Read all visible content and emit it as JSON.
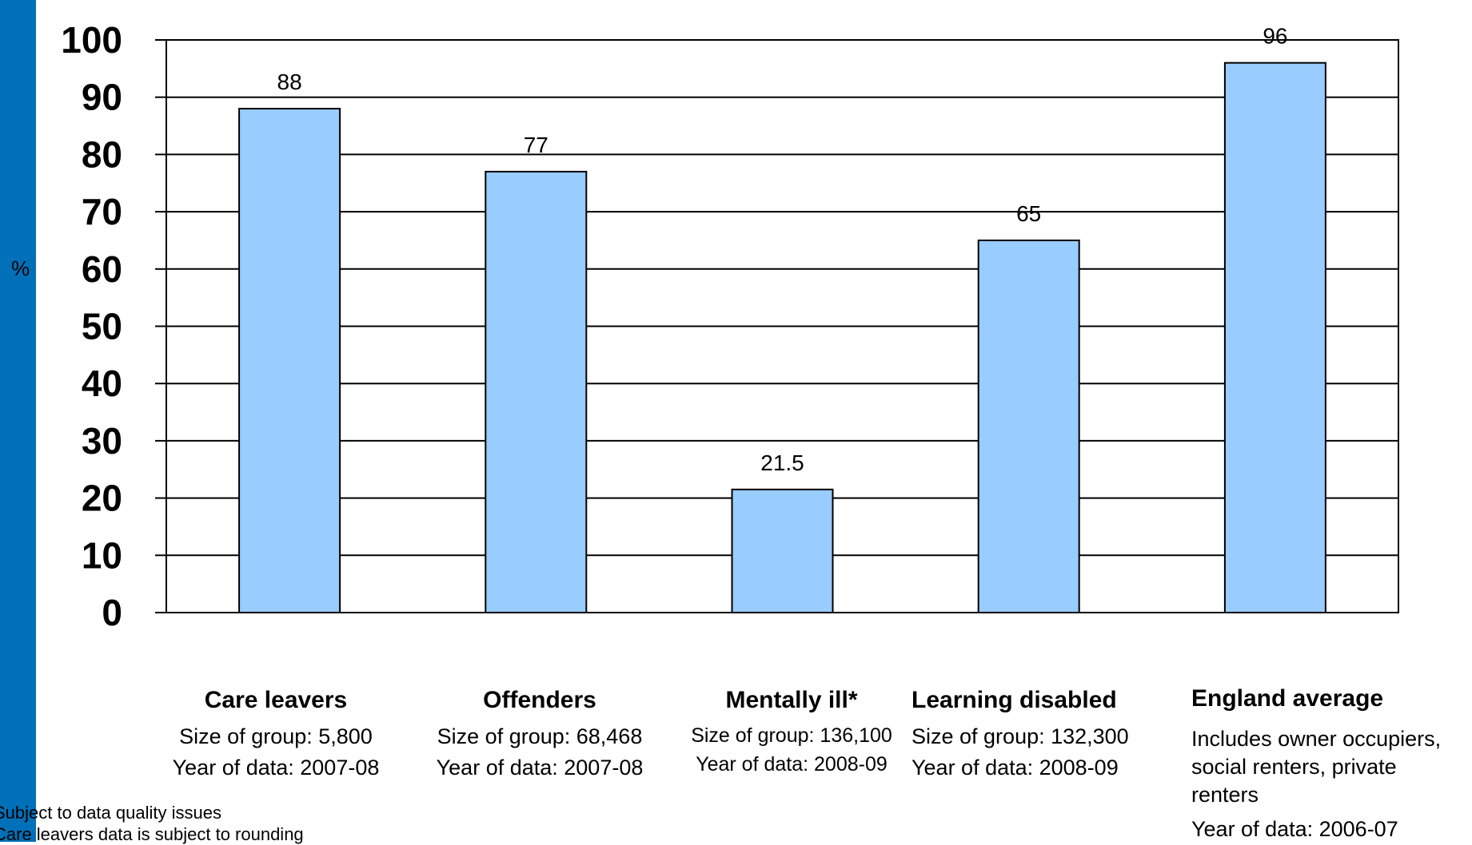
{
  "chart_data": {
    "type": "bar",
    "ylabel": "%",
    "ylim": [
      0,
      100
    ],
    "yticks": [
      "0",
      "10",
      "20",
      "30",
      "40",
      "50",
      "60",
      "70",
      "80",
      "90",
      "100"
    ],
    "grid": true,
    "bar_color": "#99ccff",
    "accent_color": "#0070b8",
    "categories": [
      "Care leavers",
      "Offenders",
      "Mentally ill*",
      "Learning disabled",
      "England average"
    ],
    "values": [
      88,
      77,
      21.5,
      65,
      96
    ],
    "value_labels": [
      "88",
      "77",
      "21.5",
      "65",
      "96"
    ],
    "category_details": [
      [
        "Size of group:  5,800",
        "Year of data: 2007-08"
      ],
      [
        "Size of group: 68,468",
        "Year of data: 2007-08"
      ],
      [
        "Size of group: 136,100",
        "Year of data: 2008-09"
      ],
      [
        "Size of group:  132,300",
        "Year of data: 2008-09"
      ],
      [
        "Includes owner occupiers,",
        "social renters, private",
        "renters",
        "Year of data: 2006-07"
      ]
    ]
  },
  "footnotes": [
    "Subject to data quality issues",
    "Care leavers data is subject to rounding"
  ]
}
